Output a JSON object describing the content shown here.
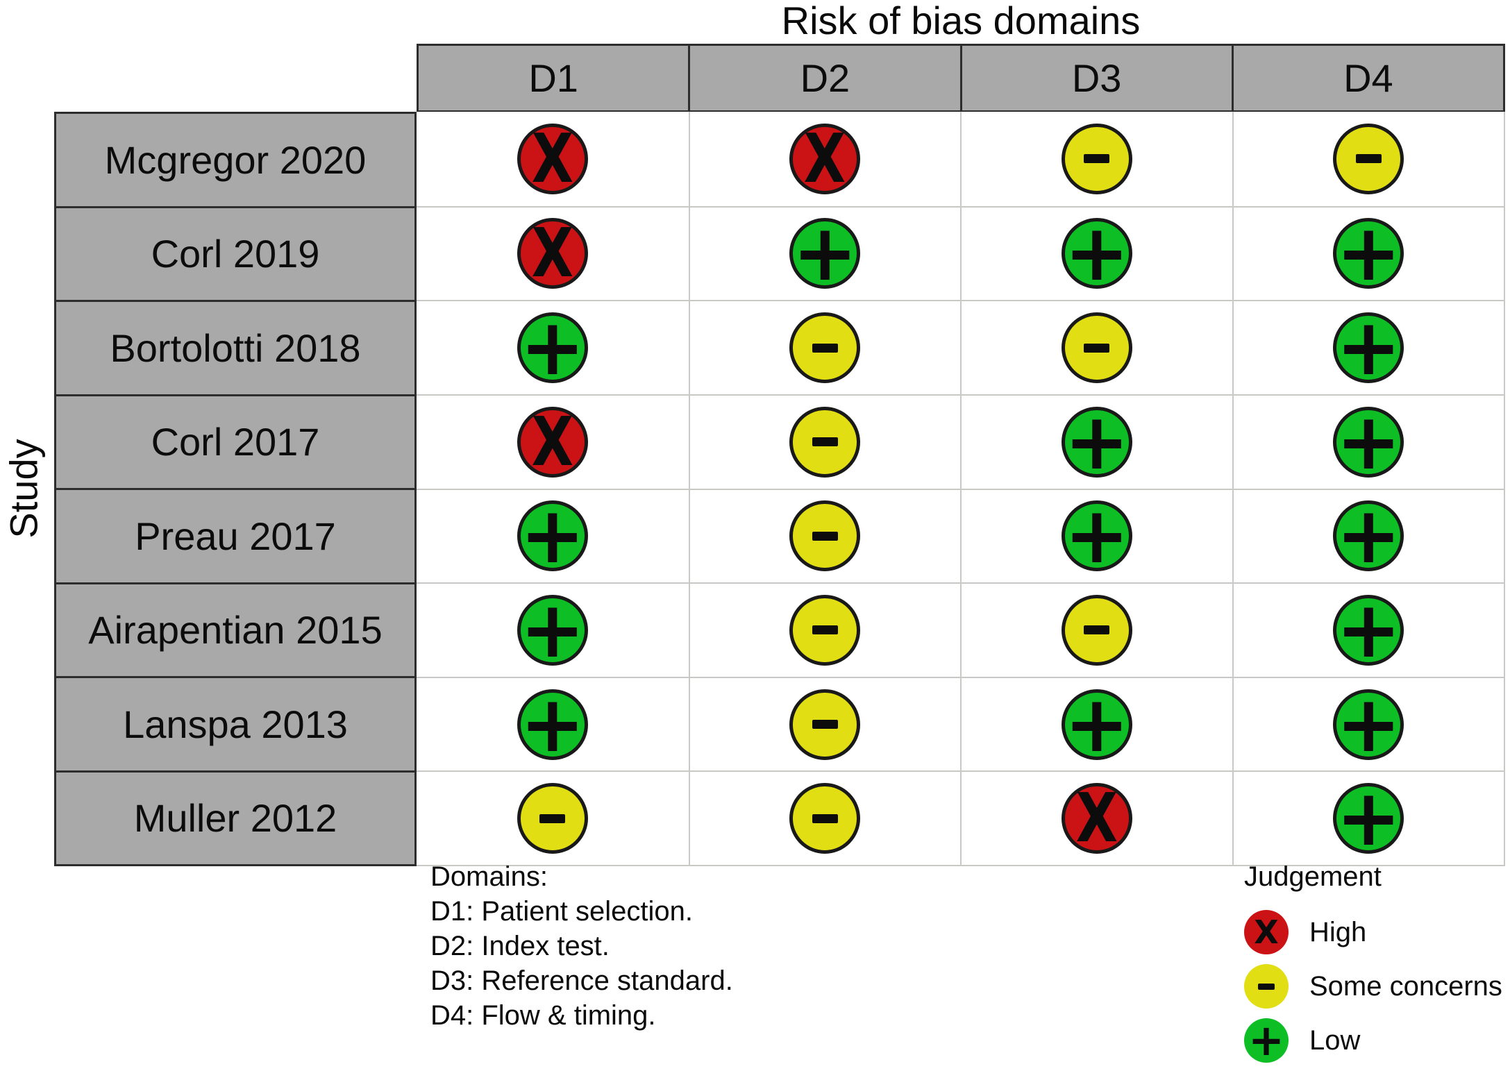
{
  "title": "Risk of bias domains",
  "y_axis_label": "Study",
  "header": {
    "columns": [
      "D1",
      "D2",
      "D3",
      "D4"
    ]
  },
  "studies": [
    "Mcgregor 2020",
    "Corl 2019",
    "Bortolotti 2018",
    "Corl 2017",
    "Preau 2017",
    "Airapentian 2015",
    "Lanspa 2013",
    "Muller 2012"
  ],
  "matrix": [
    [
      "high",
      "high",
      "some",
      "some"
    ],
    [
      "high",
      "low",
      "low",
      "low"
    ],
    [
      "low",
      "some",
      "some",
      "low"
    ],
    [
      "high",
      "some",
      "low",
      "low"
    ],
    [
      "low",
      "some",
      "low",
      "low"
    ],
    [
      "low",
      "some",
      "some",
      "low"
    ],
    [
      "low",
      "some",
      "low",
      "low"
    ],
    [
      "some",
      "some",
      "high",
      "low"
    ]
  ],
  "judgements": {
    "high": {
      "label": "High",
      "symbol": "X",
      "color": "#cb1316"
    },
    "some": {
      "label": "Some concerns",
      "symbol": "-",
      "color": "#e2de14"
    },
    "low": {
      "label": "Low",
      "symbol": "+",
      "color": "#0dbe24"
    }
  },
  "footnote": {
    "heading": "Domains:",
    "lines": [
      "D1: Patient selection.",
      "D2: Index test.",
      "D3: Reference standard.",
      "D4: Flow & timing."
    ]
  },
  "legend": {
    "title": "Judgement",
    "items": [
      {
        "key": "high",
        "label": "High"
      },
      {
        "key": "some",
        "label": "Some concerns"
      },
      {
        "key": "low",
        "label": "Low"
      }
    ]
  },
  "colors": {
    "header_bg": "#a9a9a9",
    "dark_border": "#2d2d2d",
    "light_grid": "#c7cac4"
  },
  "chart_data": {
    "type": "table",
    "title": "Risk of bias domains",
    "x_label": "Risk of bias domains",
    "y_label": "Study",
    "columns": [
      "D1",
      "D2",
      "D3",
      "D4"
    ],
    "rows": [
      "Mcgregor 2020",
      "Corl 2019",
      "Bortolotti 2018",
      "Corl 2017",
      "Preau 2017",
      "Airapentian 2015",
      "Lanspa 2013",
      "Muller 2012"
    ],
    "values": [
      [
        "High",
        "High",
        "Some concerns",
        "Some concerns"
      ],
      [
        "High",
        "Low",
        "Low",
        "Low"
      ],
      [
        "Low",
        "Some concerns",
        "Some concerns",
        "Low"
      ],
      [
        "High",
        "Some concerns",
        "Low",
        "Low"
      ],
      [
        "Low",
        "Some concerns",
        "Low",
        "Low"
      ],
      [
        "Low",
        "Some concerns",
        "Some concerns",
        "Low"
      ],
      [
        "Low",
        "Some concerns",
        "Low",
        "Low"
      ],
      [
        "Some concerns",
        "Some concerns",
        "High",
        "Low"
      ]
    ],
    "judgement_symbols": {
      "High": "X",
      "Some concerns": "-",
      "Low": "+"
    },
    "judgement_colors": {
      "High": "#cb1316",
      "Some concerns": "#e2de14",
      "Low": "#0dbe24"
    },
    "domain_definitions": [
      "D1: Patient selection.",
      "D2: Index test.",
      "D3: Reference standard.",
      "D4: Flow & timing."
    ],
    "legend_position": "bottom-right",
    "grid": true
  }
}
